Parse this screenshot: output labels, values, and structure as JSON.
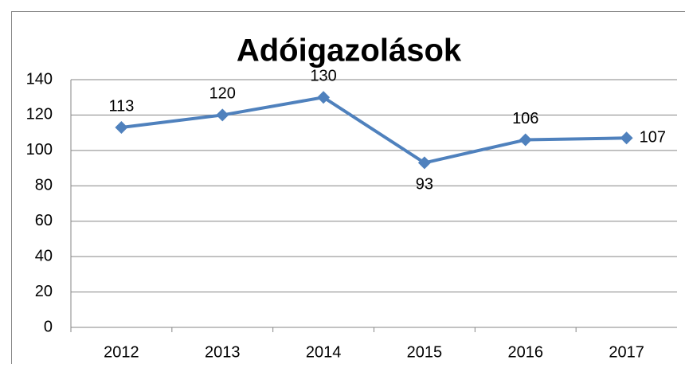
{
  "chart_data": {
    "type": "line",
    "title": "Adóigazolások",
    "categories": [
      "2012",
      "2013",
      "2014",
      "2015",
      "2016",
      "2017"
    ],
    "series": [
      {
        "name": "Adóigazolások",
        "color": "#4f81bd",
        "values": [
          113,
          120,
          130,
          93,
          106,
          107
        ]
      }
    ],
    "ylim": [
      0,
      140
    ],
    "yticks": [
      0,
      20,
      40,
      60,
      80,
      100,
      120,
      140
    ],
    "grid": true
  }
}
